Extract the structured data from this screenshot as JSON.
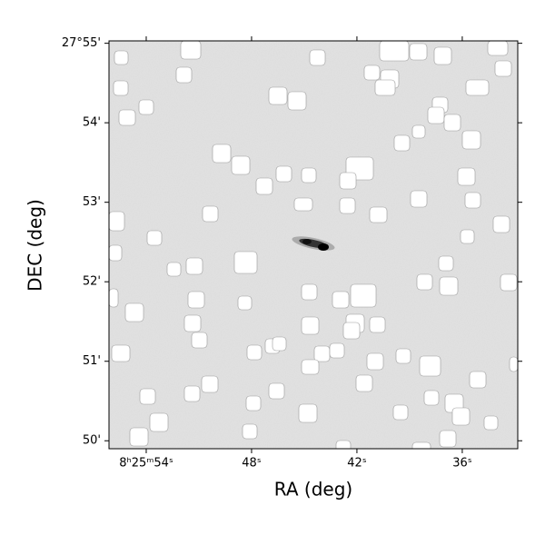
{
  "chart_data": {
    "type": "image",
    "xlabel": "RA (deg)",
    "ylabel": "DEC (deg)",
    "xlim": [
      56.12,
      32.84
    ],
    "xticks": [
      {
        "value": 54,
        "label": "8ʰ25ᵐ54ˢ"
      },
      {
        "value": 48,
        "label": "48ˢ"
      },
      {
        "value": 42,
        "label": "42ˢ"
      },
      {
        "value": 36,
        "label": "36ˢ"
      }
    ],
    "ylim": [
      49.9,
      55.03
    ],
    "yticks": [
      {
        "value": 55,
        "label": "27°55'"
      },
      {
        "value": 54,
        "label": "54'"
      },
      {
        "value": 53,
        "label": "53'"
      },
      {
        "value": 52,
        "label": "52'"
      },
      {
        "value": 51,
        "label": "51'"
      },
      {
        "value": 50,
        "label": "50'"
      }
    ]
  }
}
